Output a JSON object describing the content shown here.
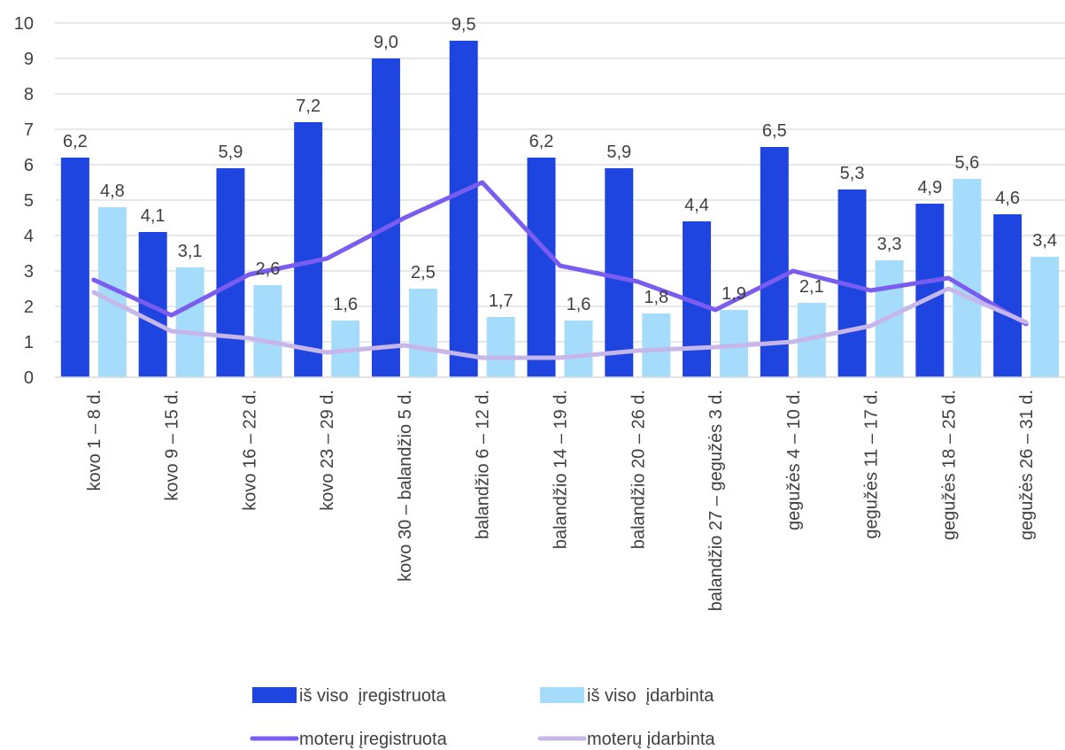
{
  "chart_data": {
    "type": "bar",
    "categories": [
      "kovo 1 – 8 d.",
      "kovo 9 – 15 d.",
      "kovo 16 – 22 d.",
      "kovo 23 – 29 d.",
      "kovo 30 – balandžio 5 d.",
      "balandžio 6 – 12 d.",
      "balandžio 14 – 19 d.",
      "balandžio 20 – 26 d.",
      "balandžio 27 – gegužės 3 d.",
      "gegužės 4 – 10 d.",
      "gegužės 11 – 17 d.",
      "gegužės 18 – 25 d.",
      "gegužės 26 – 31 d."
    ],
    "series": [
      {
        "name": "iš viso  įregistruota",
        "kind": "bar",
        "color": "#1f45e0",
        "values": [
          6.2,
          4.1,
          5.9,
          7.2,
          9.0,
          9.5,
          6.2,
          5.9,
          4.4,
          6.5,
          5.3,
          4.9,
          4.6
        ],
        "labels": [
          "6,2",
          "4,1",
          "5,9",
          "7,2",
          "9,0",
          "9,5",
          "6,2",
          "5,9",
          "4,4",
          "6,5",
          "5,3",
          "4,9",
          "4,6"
        ]
      },
      {
        "name": "iš viso  įdarbinta",
        "kind": "bar",
        "color": "#a6dcfb",
        "values": [
          4.8,
          3.1,
          2.6,
          1.6,
          2.5,
          1.7,
          1.6,
          1.8,
          1.9,
          2.1,
          3.3,
          5.6,
          3.4
        ],
        "labels": [
          "4,8",
          "3,1",
          "2,6",
          "1,6",
          "2,5",
          "1,7",
          "1,6",
          "1,8",
          "1,9",
          "2,1",
          "3,3",
          "5,6",
          "3,4"
        ]
      },
      {
        "name": "moterų įregistruota",
        "kind": "line",
        "color": "#7b5cf0",
        "values": [
          2.75,
          1.75,
          2.9,
          3.35,
          4.5,
          5.5,
          3.15,
          2.7,
          1.9,
          3.0,
          2.45,
          2.8,
          1.5
        ]
      },
      {
        "name": "moterų įdarbinta",
        "kind": "line",
        "color": "#c7b6ea",
        "values": [
          2.4,
          1.3,
          1.1,
          0.7,
          0.9,
          0.55,
          0.55,
          0.75,
          0.85,
          1.0,
          1.45,
          2.5,
          1.55
        ]
      }
    ],
    "yticks": [
      "0",
      "1",
      "2",
      "3",
      "4",
      "5",
      "6",
      "7",
      "8",
      "9",
      "10"
    ],
    "ylim": [
      0,
      10
    ],
    "grid": true,
    "legend": "bottom"
  }
}
